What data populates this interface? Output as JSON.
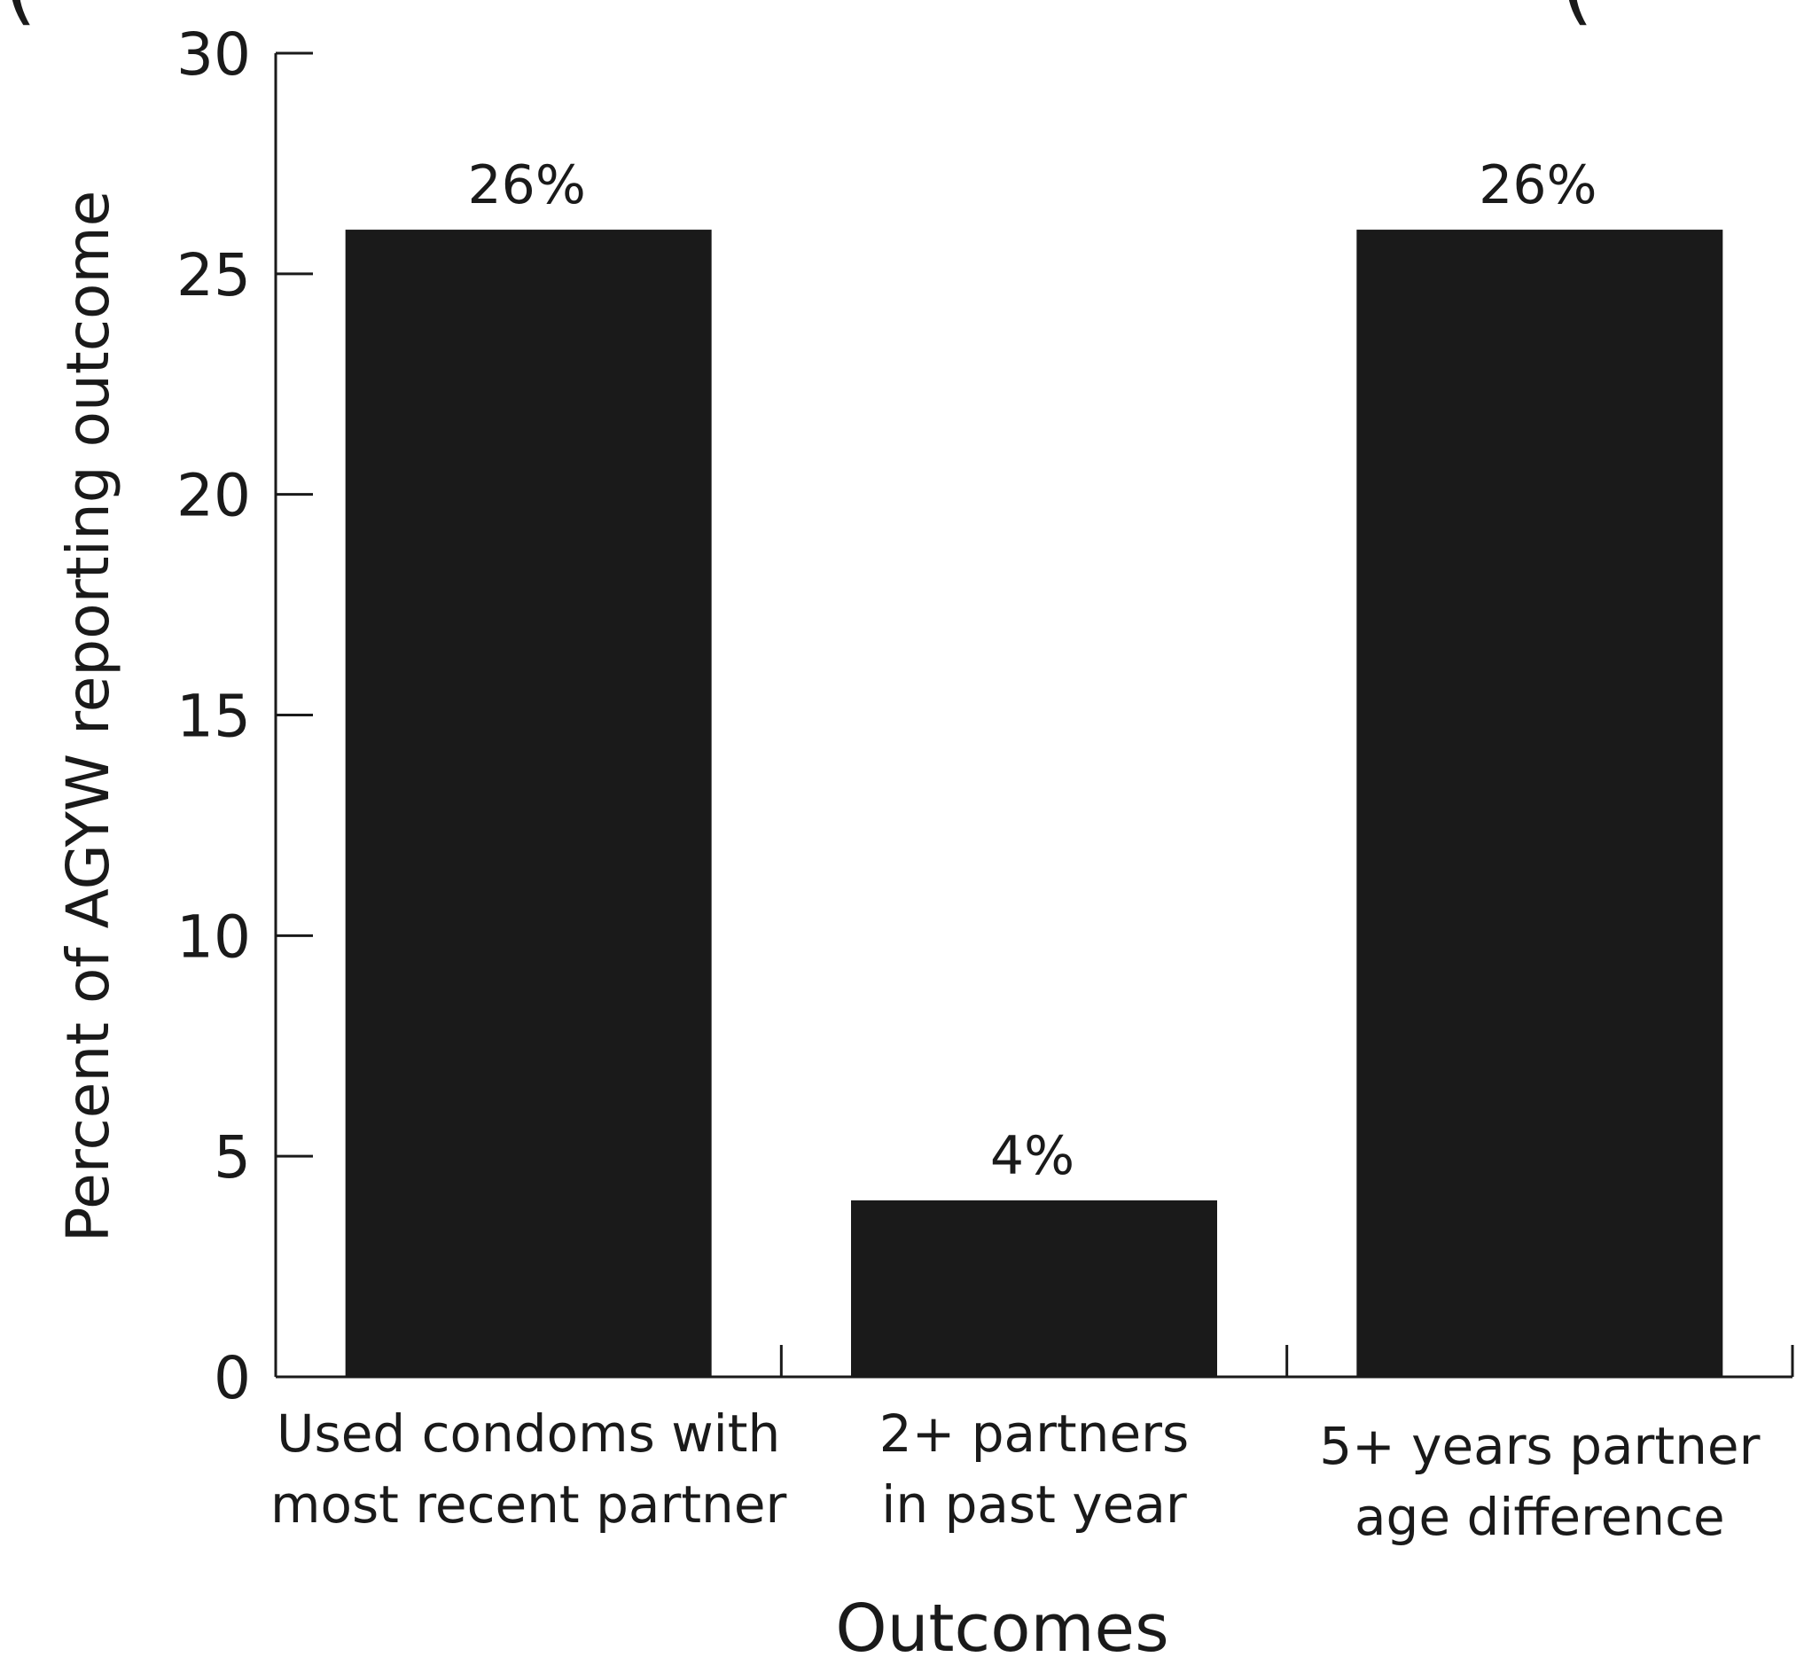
{
  "top_clipped_text": {
    "left": "(",
    "right": "("
  },
  "chart_data": {
    "type": "bar",
    "title": "",
    "xlabel": "Outcomes",
    "ylabel": "Percent of AGYW reporting outcome",
    "ylim": [
      0,
      30
    ],
    "yticks": [
      0,
      5,
      10,
      15,
      20,
      25,
      30
    ],
    "ytick_labels": [
      "0",
      "5",
      "10",
      "15",
      "20",
      "25",
      "30"
    ],
    "grid": false,
    "bar_color": "#1a1a1a",
    "categories": [
      [
        "Used condoms with",
        "most recent partner"
      ],
      [
        "2+ partners",
        "in past year"
      ],
      [
        "5+ years partner",
        "age  difference"
      ]
    ],
    "values": [
      26,
      4,
      26
    ],
    "data_labels": [
      "26%",
      "4%",
      "26%"
    ]
  }
}
